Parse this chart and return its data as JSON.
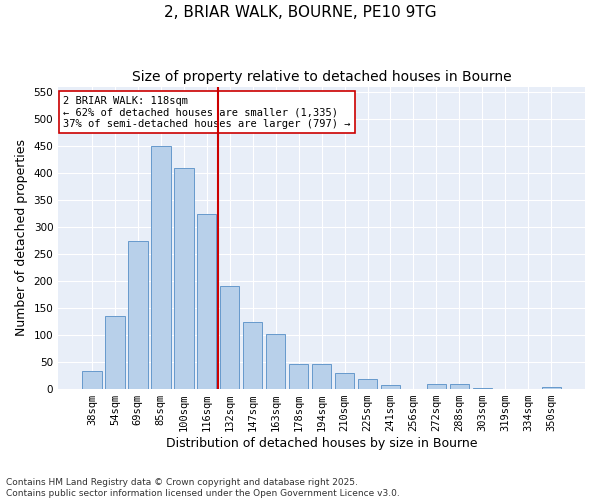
{
  "title1": "2, BRIAR WALK, BOURNE, PE10 9TG",
  "title2": "Size of property relative to detached houses in Bourne",
  "xlabel": "Distribution of detached houses by size in Bourne",
  "ylabel": "Number of detached properties",
  "bar_color": "#b8d0ea",
  "bar_edge_color": "#6699cc",
  "background_color": "#e8eef8",
  "grid_color": "#ffffff",
  "categories": [
    "38sqm",
    "54sqm",
    "69sqm",
    "85sqm",
    "100sqm",
    "116sqm",
    "132sqm",
    "147sqm",
    "163sqm",
    "178sqm",
    "194sqm",
    "210sqm",
    "225sqm",
    "241sqm",
    "256sqm",
    "272sqm",
    "288sqm",
    "303sqm",
    "319sqm",
    "334sqm",
    "350sqm"
  ],
  "values": [
    33,
    136,
    275,
    450,
    410,
    325,
    190,
    125,
    102,
    46,
    46,
    30,
    18,
    8,
    0,
    9,
    9,
    2,
    0,
    0,
    4
  ],
  "ylim": [
    0,
    560
  ],
  "yticks": [
    0,
    50,
    100,
    150,
    200,
    250,
    300,
    350,
    400,
    450,
    500,
    550
  ],
  "vline_x": 5.5,
  "vline_color": "#cc0000",
  "annotation_line1": "2 BRIAR WALK: 118sqm",
  "annotation_line2": "← 62% of detached houses are smaller (1,335)",
  "annotation_line3": "37% of semi-detached houses are larger (797) →",
  "footer": "Contains HM Land Registry data © Crown copyright and database right 2025.\nContains public sector information licensed under the Open Government Licence v3.0.",
  "title_fontsize": 11,
  "subtitle_fontsize": 10,
  "tick_fontsize": 7.5,
  "label_fontsize": 9,
  "footer_fontsize": 6.5
}
